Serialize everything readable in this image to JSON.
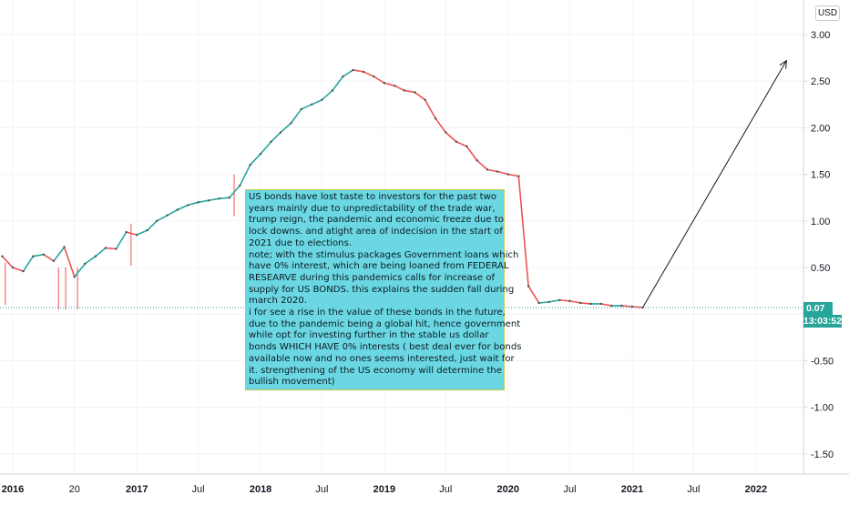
{
  "currency": "USD",
  "current_price_label": "0.07",
  "countdown_label": "13:03:52",
  "colors": {
    "up": "#26a69a",
    "down": "#ef5350",
    "note_background": "#6ad7e3",
    "grid": "#f0f3fa"
  },
  "chart_data": {
    "type": "line",
    "title": "",
    "xlabel": "",
    "ylabel": "",
    "y_scale_label": "USD",
    "ylim": [
      -1.7,
      3.25
    ],
    "y_ticks": [
      3.0,
      2.5,
      2.0,
      1.5,
      1.0,
      0.5,
      -0.5,
      -1.0,
      -1.5
    ],
    "y_tick_labels": [
      "3.00",
      "2.50",
      "2.00",
      "1.50",
      "1.00",
      "0.50",
      "-0.50",
      "-1.00",
      "-1.50"
    ],
    "x_ticks": [
      {
        "date": "2016-01-01",
        "label": "2016",
        "major": true
      },
      {
        "date": "2016-07-01",
        "label": "20",
        "major": false
      },
      {
        "date": "2017-01-01",
        "label": "2017",
        "major": true
      },
      {
        "date": "2017-07-01",
        "label": "Jul",
        "major": false
      },
      {
        "date": "2018-01-01",
        "label": "2018",
        "major": true
      },
      {
        "date": "2018-07-01",
        "label": "Jul",
        "major": false
      },
      {
        "date": "2019-01-01",
        "label": "2019",
        "major": true
      },
      {
        "date": "2019-07-01",
        "label": "Jul",
        "major": false
      },
      {
        "date": "2020-01-01",
        "label": "2020",
        "major": true
      },
      {
        "date": "2020-07-01",
        "label": "Jul",
        "major": false
      },
      {
        "date": "2021-01-01",
        "label": "2021",
        "major": true
      },
      {
        "date": "2021-07-01",
        "label": "Jul",
        "major": false
      },
      {
        "date": "2022-01-01",
        "label": "2022",
        "major": true
      }
    ],
    "grid": true,
    "current_price": 0.07,
    "series": [
      {
        "values": [
          {
            "x": "2015-12-01",
            "y": 0.62
          },
          {
            "x": "2016-01-01",
            "y": 0.5
          },
          {
            "x": "2016-02-01",
            "y": 0.46
          },
          {
            "x": "2016-03-01",
            "y": 0.62
          },
          {
            "x": "2016-04-01",
            "y": 0.64
          },
          {
            "x": "2016-05-01",
            "y": 0.57
          },
          {
            "x": "2016-06-01",
            "y": 0.72
          },
          {
            "x": "2016-07-01",
            "y": 0.4
          },
          {
            "x": "2016-08-01",
            "y": 0.54
          },
          {
            "x": "2016-09-01",
            "y": 0.62
          },
          {
            "x": "2016-10-01",
            "y": 0.71
          },
          {
            "x": "2016-11-01",
            "y": 0.7
          },
          {
            "x": "2016-12-01",
            "y": 0.88
          },
          {
            "x": "2017-01-01",
            "y": 0.85
          },
          {
            "x": "2017-02-01",
            "y": 0.9
          },
          {
            "x": "2017-03-01",
            "y": 1.0
          },
          {
            "x": "2017-04-01",
            "y": 1.06
          },
          {
            "x": "2017-05-01",
            "y": 1.12
          },
          {
            "x": "2017-06-01",
            "y": 1.17
          },
          {
            "x": "2017-07-01",
            "y": 1.2
          },
          {
            "x": "2017-08-01",
            "y": 1.22
          },
          {
            "x": "2017-09-01",
            "y": 1.24
          },
          {
            "x": "2017-10-01",
            "y": 1.25
          },
          {
            "x": "2017-11-01",
            "y": 1.38
          },
          {
            "x": "2017-12-01",
            "y": 1.6
          },
          {
            "x": "2018-01-01",
            "y": 1.72
          },
          {
            "x": "2018-02-01",
            "y": 1.85
          },
          {
            "x": "2018-03-01",
            "y": 1.95
          },
          {
            "x": "2018-04-01",
            "y": 2.05
          },
          {
            "x": "2018-05-01",
            "y": 2.2
          },
          {
            "x": "2018-06-01",
            "y": 2.25
          },
          {
            "x": "2018-07-01",
            "y": 2.3
          },
          {
            "x": "2018-08-01",
            "y": 2.4
          },
          {
            "x": "2018-09-01",
            "y": 2.55
          },
          {
            "x": "2018-10-01",
            "y": 2.62
          },
          {
            "x": "2018-11-01",
            "y": 2.6
          },
          {
            "x": "2018-12-01",
            "y": 2.55
          },
          {
            "x": "2019-01-01",
            "y": 2.48
          },
          {
            "x": "2019-02-01",
            "y": 2.45
          },
          {
            "x": "2019-03-01",
            "y": 2.4
          },
          {
            "x": "2019-04-01",
            "y": 2.38
          },
          {
            "x": "2019-05-01",
            "y": 2.3
          },
          {
            "x": "2019-06-01",
            "y": 2.1
          },
          {
            "x": "2019-07-01",
            "y": 1.95
          },
          {
            "x": "2019-08-01",
            "y": 1.85
          },
          {
            "x": "2019-09-01",
            "y": 1.8
          },
          {
            "x": "2019-10-01",
            "y": 1.65
          },
          {
            "x": "2019-11-01",
            "y": 1.55
          },
          {
            "x": "2019-12-01",
            "y": 1.53
          },
          {
            "x": "2020-01-01",
            "y": 1.5
          },
          {
            "x": "2020-02-01",
            "y": 1.48
          },
          {
            "x": "2020-03-01",
            "y": 0.3
          },
          {
            "x": "2020-04-01",
            "y": 0.12
          },
          {
            "x": "2020-05-01",
            "y": 0.13
          },
          {
            "x": "2020-06-01",
            "y": 0.15
          },
          {
            "x": "2020-07-01",
            "y": 0.14
          },
          {
            "x": "2020-08-01",
            "y": 0.12
          },
          {
            "x": "2020-09-01",
            "y": 0.11
          },
          {
            "x": "2020-10-01",
            "y": 0.11
          },
          {
            "x": "2020-11-01",
            "y": 0.09
          },
          {
            "x": "2020-12-01",
            "y": 0.09
          },
          {
            "x": "2021-01-01",
            "y": 0.08
          },
          {
            "x": "2021-02-01",
            "y": 0.07
          }
        ]
      }
    ],
    "spikes": [
      {
        "x": "2015-12-10",
        "y": 0.1
      },
      {
        "x": "2016-05-15",
        "y": 0.05
      },
      {
        "x": "2016-06-05",
        "y": 0.05
      },
      {
        "x": "2016-07-10",
        "y": 0.05
      },
      {
        "x": "2016-12-15",
        "y": 0.52
      },
      {
        "x": "2017-10-15",
        "y": 1.05
      }
    ],
    "annotation_arrow": {
      "from": {
        "x": "2021-02-01",
        "y": 0.07
      },
      "to": {
        "x": "2022-04-01",
        "y": 2.72
      }
    },
    "annotation_text": [
      "US bonds have lost taste to investors for the past two",
      "years mainly due to unpredictability of the trade war,",
      "trump reign, the pandemic and economic freeze due to",
      "lock downs. and atight area of indecision in the start of",
      "2021 due to elections.",
      "note; with the stimulus packages Government loans which",
      "have 0% interest, which are being loaned from FEDERAL",
      "RESEARVE during this pandemics calls for increase of",
      "supply for US BONDS. this explains the sudden fall during",
      "march 2020.",
      "i for see a rise in the value of these bonds in the future,",
      "due to the pandemic being a global hit, hence government",
      "while opt for investing further in the stable us dollar",
      "bonds WHICH HAVE 0% interests ( best deal ever for bonds",
      "available now and no ones seems interested, just wait for",
      "it. strengthening of the US economy will determine the",
      "bullish movement)"
    ]
  }
}
